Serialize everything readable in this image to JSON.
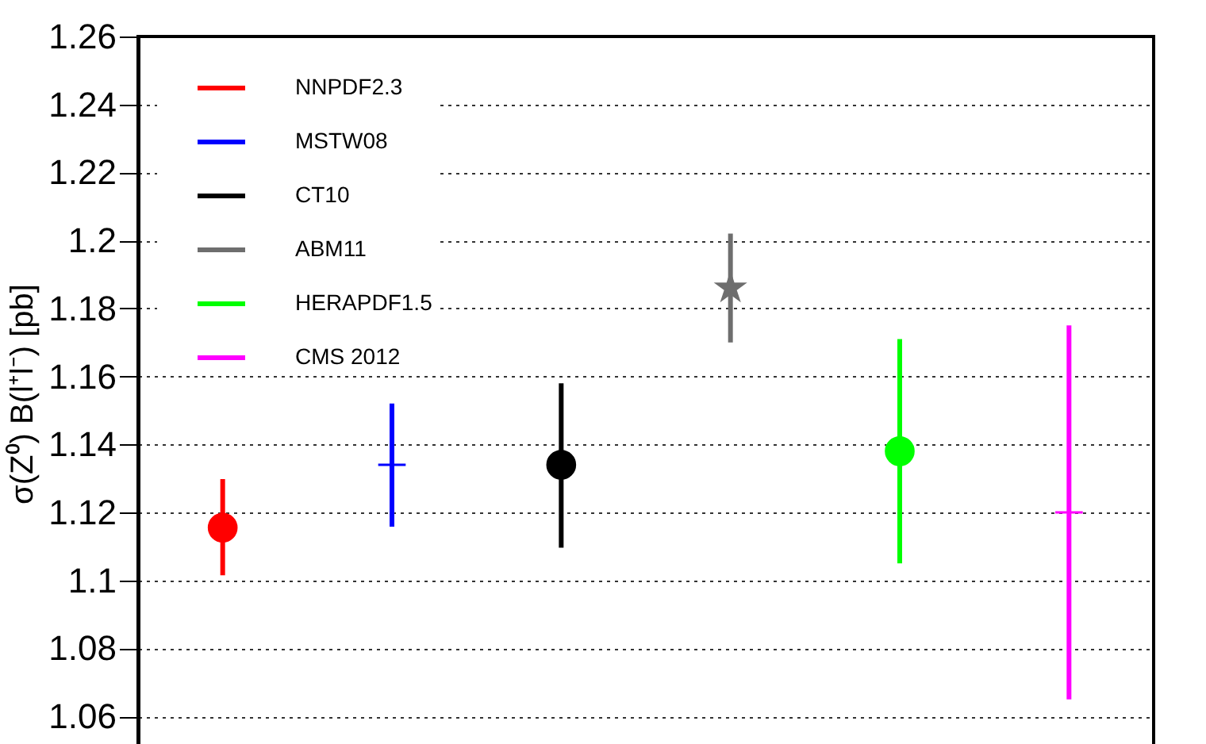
{
  "chart_data": {
    "type": "scatter",
    "ylabel": "σ(Z⁰)  B(l⁺l⁻) [pb]",
    "categories": [
      null,
      null,
      null,
      null,
      null,
      null
    ],
    "ylim": [
      1.05,
      1.26
    ],
    "yticks": [
      1.06,
      1.08,
      1.1,
      1.12,
      1.14,
      1.16,
      1.18,
      1.2,
      1.22,
      1.24,
      1.26
    ],
    "grid": "y",
    "legend": "top left",
    "tick_labels": "y",
    "series": [
      {
        "name": "NNPDF2.3",
        "color": "#ff0000",
        "marker": "circle",
        "values": [
          1.1155,
          null,
          null,
          null,
          null,
          null
        ],
        "errors": [
          [
            1.1015,
            1.1298
          ],
          null,
          null,
          null,
          null,
          null
        ]
      },
      {
        "name": "MSTW08",
        "color": "#0000ff",
        "marker": "cross",
        "values": [
          null,
          1.134,
          null,
          null,
          null,
          null
        ],
        "errors": [
          null,
          [
            1.1158,
            1.152
          ],
          null,
          null,
          null,
          null
        ]
      },
      {
        "name": "CT10",
        "color": "#000000",
        "marker": "circle",
        "values": [
          null,
          null,
          1.134,
          null,
          null,
          null
        ],
        "errors": [
          null,
          null,
          [
            1.1096,
            1.158
          ],
          null,
          null,
          null
        ]
      },
      {
        "name": "ABM11",
        "color": "#6e6e6e",
        "marker": "star",
        "values": [
          null,
          null,
          null,
          1.186,
          null,
          null
        ],
        "errors": [
          null,
          null,
          null,
          [
            1.17,
            1.202
          ],
          null,
          null
        ]
      },
      {
        "name": "HERAPDF1.5",
        "color": "#00ff00",
        "marker": "circle",
        "values": [
          null,
          null,
          null,
          null,
          1.138,
          null
        ],
        "errors": [
          null,
          null,
          null,
          null,
          [
            1.105,
            1.171
          ],
          null
        ]
      },
      {
        "name": "CMS 2012",
        "color": "#ff00ff",
        "marker": "cross",
        "values": [
          null,
          null,
          null,
          null,
          null,
          1.12
        ],
        "errors": [
          null,
          null,
          null,
          null,
          null,
          [
            1.065,
            1.175
          ]
        ]
      }
    ]
  }
}
